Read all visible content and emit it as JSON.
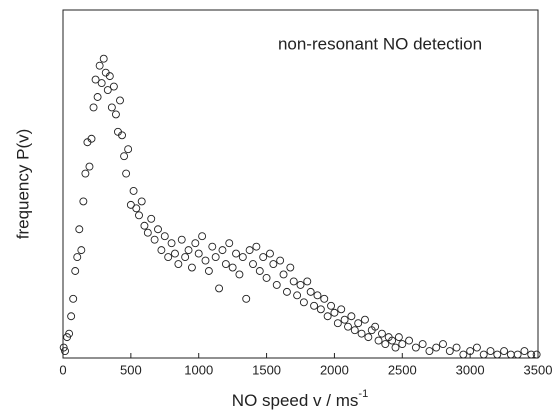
{
  "chart_data": {
    "type": "scatter",
    "annotation": "non-resonant NO detection",
    "xlabel": "NO speed v / ms",
    "xlabel_superscript": "-1",
    "ylabel": "frequency P(v)",
    "xlim": [
      0,
      3500
    ],
    "xticks": [
      0,
      500,
      1000,
      1500,
      2000,
      2500,
      3000,
      3500
    ],
    "ylim": [
      0,
      100
    ],
    "yticks": [],
    "color": "#222222",
    "x": [
      5,
      15,
      30,
      45,
      60,
      75,
      90,
      105,
      120,
      135,
      150,
      165,
      180,
      195,
      210,
      225,
      240,
      255,
      270,
      285,
      300,
      315,
      330,
      345,
      360,
      375,
      390,
      405,
      420,
      435,
      450,
      465,
      480,
      500,
      520,
      540,
      560,
      580,
      600,
      625,
      650,
      675,
      700,
      725,
      750,
      775,
      800,
      825,
      850,
      875,
      900,
      925,
      950,
      975,
      1000,
      1025,
      1050,
      1075,
      1100,
      1125,
      1150,
      1175,
      1200,
      1225,
      1250,
      1275,
      1300,
      1325,
      1350,
      1375,
      1400,
      1425,
      1450,
      1475,
      1500,
      1525,
      1550,
      1575,
      1600,
      1625,
      1650,
      1675,
      1700,
      1725,
      1750,
      1775,
      1800,
      1825,
      1850,
      1875,
      1900,
      1925,
      1950,
      1975,
      2000,
      2025,
      2050,
      2075,
      2100,
      2125,
      2150,
      2175,
      2200,
      2225,
      2250,
      2275,
      2300,
      2325,
      2350,
      2375,
      2400,
      2425,
      2450,
      2475,
      2500,
      2550,
      2600,
      2650,
      2700,
      2750,
      2800,
      2850,
      2900,
      2950,
      3000,
      3050,
      3100,
      3150,
      3200,
      3250,
      3300,
      3350,
      3400,
      3450,
      3490
    ],
    "values": [
      3,
      2,
      6,
      7,
      12,
      17,
      25,
      29,
      37,
      31,
      45,
      53,
      62,
      55,
      63,
      72,
      80,
      75,
      84,
      79,
      86,
      82,
      77,
      81,
      72,
      78,
      70,
      65,
      74,
      64,
      58,
      53,
      60,
      44,
      48,
      43,
      41,
      45,
      38,
      36,
      40,
      34,
      37,
      31,
      35,
      29,
      33,
      30,
      27,
      34,
      29,
      31,
      26,
      33,
      30,
      35,
      28,
      25,
      32,
      29,
      20,
      31,
      27,
      33,
      26,
      30,
      24,
      29,
      17,
      31,
      27,
      32,
      25,
      29,
      23,
      30,
      27,
      21,
      28,
      24,
      19,
      26,
      22,
      18,
      21,
      16,
      22,
      19,
      15,
      18,
      14,
      17,
      12,
      15,
      13,
      10,
      14,
      11,
      9,
      12,
      8,
      10,
      7,
      11,
      6,
      8,
      9,
      5,
      7,
      4,
      6,
      5,
      3,
      6,
      4,
      5,
      3,
      4,
      2,
      3,
      4,
      2,
      3,
      1,
      2,
      3,
      1,
      2,
      1,
      2,
      1,
      1,
      2,
      1,
      1
    ]
  }
}
